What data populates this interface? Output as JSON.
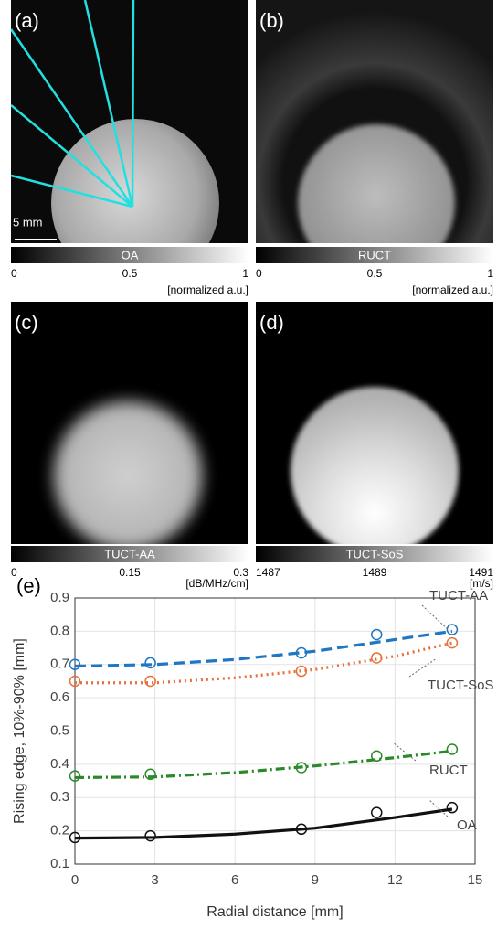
{
  "panels": [
    {
      "label": "(a)",
      "scale_bar": "5 mm",
      "colorbar": {
        "title": "OA",
        "clim": [
          0,
          1
        ],
        "ticks": [
          0,
          0.5,
          1
        ],
        "unit": "[normalized a.u.]"
      }
    },
    {
      "label": "(b)",
      "colorbar": {
        "title": "RUCT",
        "clim": [
          0,
          1
        ],
        "ticks": [
          0,
          0.5,
          1
        ],
        "unit": "[normalized a.u.]"
      }
    },
    {
      "label": "(c)",
      "colorbar": {
        "title": "TUCT-AA",
        "clim": [
          0,
          0.3
        ],
        "ticks": [
          0,
          0.15,
          0.3
        ],
        "unit": "[dB/MHz/cm]"
      }
    },
    {
      "label": "(d)",
      "colorbar": {
        "title": "TUCT-SoS",
        "clim": [
          1487,
          1491
        ],
        "ticks": [
          1487,
          1489,
          1491
        ],
        "unit": "[m/s]"
      }
    }
  ],
  "chart_data": {
    "type": "scatter-fit",
    "panel_label": "(e)",
    "x_label": "Radial distance [mm]",
    "y_label": "Rising edge, 10%-90% [mm]",
    "xlim": [
      0,
      15
    ],
    "ylim": [
      0.1,
      0.9
    ],
    "xticks": [
      0,
      3,
      6,
      9,
      12,
      15
    ],
    "yticks": [
      0.1,
      0.2,
      0.3,
      0.4,
      0.5,
      0.6,
      0.7,
      0.8,
      0.9
    ],
    "grid": true,
    "x": [
      0,
      2.83,
      8.49,
      11.31,
      14.14
    ],
    "fit_x": [
      0,
      3,
      6,
      9,
      12,
      14.14
    ],
    "series": [
      {
        "name": "TUCT-AA",
        "color": "#1f77c4",
        "line_style": "dashed",
        "values": [
          0.7,
          0.705,
          0.735,
          0.79,
          0.805
        ],
        "fit": [
          0.695,
          0.7,
          0.715,
          0.74,
          0.775,
          0.8
        ]
      },
      {
        "name": "TUCT-SoS",
        "color": "#e8703a",
        "line_style": "dotted",
        "values": [
          0.65,
          0.65,
          0.68,
          0.72,
          0.765
        ],
        "fit": [
          0.645,
          0.645,
          0.66,
          0.685,
          0.725,
          0.765
        ]
      },
      {
        "name": "RUCT",
        "color": "#2a8a2a",
        "line_style": "dashdot",
        "values": [
          0.365,
          0.37,
          0.39,
          0.425,
          0.445
        ],
        "fit": [
          0.36,
          0.362,
          0.375,
          0.395,
          0.42,
          0.44
        ]
      },
      {
        "name": "OA",
        "color": "#111111",
        "line_style": "solid",
        "values": [
          0.18,
          0.185,
          0.205,
          0.255,
          0.27
        ],
        "fit": [
          0.178,
          0.18,
          0.19,
          0.208,
          0.24,
          0.265
        ]
      }
    ]
  }
}
